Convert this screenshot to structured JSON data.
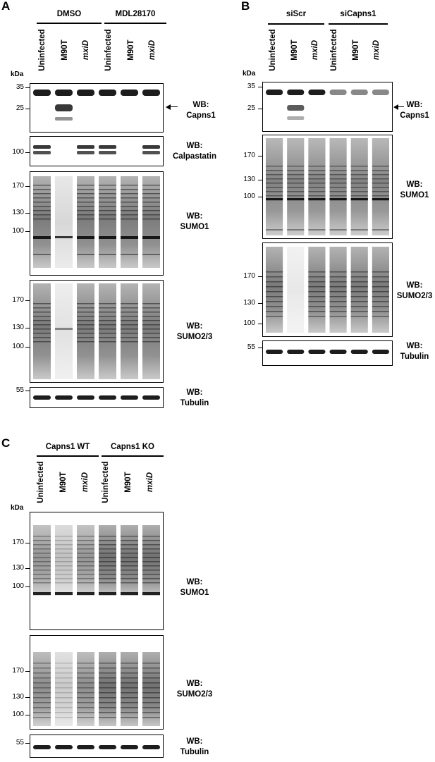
{
  "panel_a": {
    "label": "A",
    "groups": [
      "DMSO",
      "MDL28170"
    ],
    "lanes": [
      "Uninfected",
      "M90T",
      "mxiD",
      "Uninfected",
      "M90T",
      "mxiD"
    ],
    "kda": "kDa",
    "blots": [
      {
        "wb": "WB:",
        "name": "Capns1",
        "markers": [
          "35",
          "25"
        ]
      },
      {
        "wb": "WB:",
        "name": "Calpastatin",
        "markers": [
          "100"
        ]
      },
      {
        "wb": "WB:",
        "name": "SUMO1",
        "markers": [
          "170",
          "130",
          "100"
        ]
      },
      {
        "wb": "WB:",
        "name": "SUMO2/3",
        "markers": [
          "170",
          "130",
          "100"
        ]
      },
      {
        "wb": "WB:",
        "name": "Tubulin",
        "markers": [
          "55"
        ]
      }
    ]
  },
  "panel_b": {
    "label": "B",
    "groups": [
      "siScr",
      "siCapns1"
    ],
    "lanes": [
      "Uninfected",
      "M90T",
      "mxiD",
      "Uninfected",
      "M90T",
      "mxiD"
    ],
    "kda": "kDa",
    "blots": [
      {
        "wb": "WB:",
        "name": "Capns1",
        "markers": [
          "35",
          "25"
        ]
      },
      {
        "wb": "WB:",
        "name": "SUMO1",
        "markers": [
          "170",
          "130",
          "100"
        ]
      },
      {
        "wb": "WB:",
        "name": "SUMO2/3",
        "markers": [
          "170",
          "130",
          "100"
        ]
      },
      {
        "wb": "WB:",
        "name": "Tubulin",
        "markers": [
          "55"
        ]
      }
    ]
  },
  "panel_c": {
    "label": "C",
    "groups": [
      "Capns1 WT",
      "Capns1 KO"
    ],
    "lanes": [
      "Uninfected",
      "M90T",
      "mxiD",
      "Uninfected",
      "M90T",
      "mxiD"
    ],
    "kda": "kDa",
    "blots": [
      {
        "wb": "WB:",
        "name": "SUMO1",
        "markers": [
          "170",
          "130",
          "100"
        ]
      },
      {
        "wb": "WB:",
        "name": "SUMO2/3",
        "markers": [
          "170",
          "130",
          "100"
        ]
      },
      {
        "wb": "WB:",
        "name": "Tubulin",
        "markers": [
          "55"
        ]
      }
    ]
  }
}
